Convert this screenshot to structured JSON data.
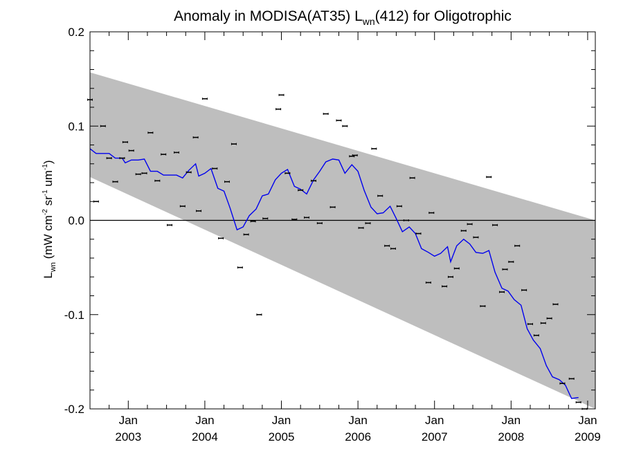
{
  "chart_data": {
    "type": "scatter",
    "title": {
      "prefix": "Anomaly in MODISA(AT35) L",
      "subscript": "wn",
      "suffix": "(412) for Oligotrophic"
    },
    "ylabel": {
      "l": "L",
      "wn": "wn",
      "units_open": " (mW cm",
      "exp1": "-2",
      "sr": " sr",
      "exp2": "-1",
      "um": " um",
      "exp3": "-1",
      "close": ")"
    },
    "xlabel": "",
    "x_range": [
      2002.5,
      2009.1
    ],
    "ylim": [
      -0.2,
      0.2
    ],
    "y_ticks": [
      {
        "value": 0.2,
        "label": "0.2"
      },
      {
        "value": 0.1,
        "label": "0.1"
      },
      {
        "value": 0.0,
        "label": "0.0"
      },
      {
        "value": -0.1,
        "label": "-0.1"
      },
      {
        "value": -0.2,
        "label": "-0.2"
      }
    ],
    "x_ticks": [
      {
        "value": 2003,
        "month": "Jan",
        "year": "2003"
      },
      {
        "value": 2004,
        "month": "Jan",
        "year": "2004"
      },
      {
        "value": 2005,
        "month": "Jan",
        "year": "2005"
      },
      {
        "value": 2006,
        "month": "Jan",
        "year": "2006"
      },
      {
        "value": 2007,
        "month": "Jan",
        "year": "2007"
      },
      {
        "value": 2008,
        "month": "Jan",
        "year": "2008"
      },
      {
        "value": 2009,
        "month": "Jan",
        "year": "2009"
      }
    ],
    "band": {
      "color": "#bebebe",
      "upper": [
        [
          2002.5,
          0.157
        ],
        [
          2009.1,
          0.0
        ]
      ],
      "lower": [
        [
          2002.5,
          0.046
        ],
        [
          2009.1,
          -0.2
        ]
      ]
    },
    "zero_line": 0.0,
    "series": [
      {
        "kind": "points",
        "color": "#000000",
        "points": [
          [
            2002.5,
            0.128
          ],
          [
            2002.58,
            0.02
          ],
          [
            2002.67,
            0.1
          ],
          [
            2002.75,
            0.066
          ],
          [
            2002.83,
            0.041
          ],
          [
            2002.92,
            0.066
          ],
          [
            2002.96,
            0.083
          ],
          [
            2003.04,
            0.074
          ],
          [
            2003.13,
            0.049
          ],
          [
            2003.21,
            0.05
          ],
          [
            2003.29,
            0.093
          ],
          [
            2003.38,
            0.042
          ],
          [
            2003.46,
            0.07
          ],
          [
            2003.54,
            -0.005
          ],
          [
            2003.63,
            0.072
          ],
          [
            2003.71,
            0.015
          ],
          [
            2003.79,
            0.051
          ],
          [
            2003.88,
            0.088
          ],
          [
            2003.92,
            0.01
          ],
          [
            2004.0,
            0.129
          ],
          [
            2004.13,
            0.055
          ],
          [
            2004.21,
            -0.019
          ],
          [
            2004.29,
            0.041
          ],
          [
            2004.38,
            0.081
          ],
          [
            2004.46,
            -0.05
          ],
          [
            2004.54,
            -0.015
          ],
          [
            2004.63,
            -0.001
          ],
          [
            2004.71,
            -0.1
          ],
          [
            2004.79,
            0.002
          ],
          [
            2004.96,
            0.118
          ],
          [
            2005.0,
            0.133
          ],
          [
            2005.08,
            0.05
          ],
          [
            2005.17,
            0.001
          ],
          [
            2005.25,
            0.032
          ],
          [
            2005.33,
            0.003
          ],
          [
            2005.42,
            0.042
          ],
          [
            2005.5,
            -0.003
          ],
          [
            2005.58,
            0.113
          ],
          [
            2005.67,
            0.014
          ],
          [
            2005.75,
            0.106
          ],
          [
            2005.83,
            0.1
          ],
          [
            2005.92,
            0.068
          ],
          [
            2005.96,
            0.069
          ],
          [
            2006.04,
            -0.008
          ],
          [
            2006.13,
            -0.003
          ],
          [
            2006.21,
            0.076
          ],
          [
            2006.29,
            0.026
          ],
          [
            2006.38,
            -0.027
          ],
          [
            2006.46,
            -0.03
          ],
          [
            2006.54,
            0.015
          ],
          [
            2006.63,
            0.0
          ],
          [
            2006.71,
            0.045
          ],
          [
            2006.79,
            -0.014
          ],
          [
            2006.92,
            -0.066
          ],
          [
            2006.96,
            0.008
          ],
          [
            2007.13,
            -0.07
          ],
          [
            2007.21,
            -0.06
          ],
          [
            2007.29,
            -0.051
          ],
          [
            2007.38,
            -0.011
          ],
          [
            2007.46,
            -0.004
          ],
          [
            2007.54,
            -0.018
          ],
          [
            2007.63,
            -0.091
          ],
          [
            2007.71,
            0.046
          ],
          [
            2007.79,
            -0.005
          ],
          [
            2007.88,
            -0.076
          ],
          [
            2007.92,
            -0.052
          ],
          [
            2008.0,
            -0.044
          ],
          [
            2008.08,
            -0.027
          ],
          [
            2008.17,
            -0.074
          ],
          [
            2008.25,
            -0.11
          ],
          [
            2008.33,
            -0.122
          ],
          [
            2008.42,
            -0.109
          ],
          [
            2008.5,
            -0.104
          ],
          [
            2008.58,
            -0.089
          ],
          [
            2008.67,
            -0.173
          ],
          [
            2008.79,
            -0.168
          ],
          [
            2008.88,
            -0.193
          ],
          [
            2008.96,
            -0.2
          ]
        ]
      },
      {
        "kind": "line",
        "color": "#0000ee",
        "points": [
          [
            2002.5,
            0.076
          ],
          [
            2002.58,
            0.071
          ],
          [
            2002.67,
            0.071
          ],
          [
            2002.75,
            0.071
          ],
          [
            2002.83,
            0.066
          ],
          [
            2002.92,
            0.066
          ],
          [
            2002.96,
            0.061
          ],
          [
            2003.04,
            0.064
          ],
          [
            2003.13,
            0.064
          ],
          [
            2003.21,
            0.065
          ],
          [
            2003.29,
            0.052
          ],
          [
            2003.38,
            0.052
          ],
          [
            2003.46,
            0.048
          ],
          [
            2003.54,
            0.048
          ],
          [
            2003.63,
            0.048
          ],
          [
            2003.71,
            0.045
          ],
          [
            2003.79,
            0.053
          ],
          [
            2003.88,
            0.06
          ],
          [
            2003.92,
            0.047
          ],
          [
            2004.0,
            0.05
          ],
          [
            2004.08,
            0.055
          ],
          [
            2004.17,
            0.034
          ],
          [
            2004.25,
            0.031
          ],
          [
            2004.33,
            0.013
          ],
          [
            2004.42,
            -0.01
          ],
          [
            2004.5,
            -0.007
          ],
          [
            2004.58,
            0.005
          ],
          [
            2004.67,
            0.012
          ],
          [
            2004.75,
            0.026
          ],
          [
            2004.83,
            0.028
          ],
          [
            2004.92,
            0.043
          ],
          [
            2005.0,
            0.05
          ],
          [
            2005.08,
            0.054
          ],
          [
            2005.17,
            0.036
          ],
          [
            2005.25,
            0.033
          ],
          [
            2005.33,
            0.028
          ],
          [
            2005.42,
            0.043
          ],
          [
            2005.5,
            0.052
          ],
          [
            2005.58,
            0.062
          ],
          [
            2005.67,
            0.065
          ],
          [
            2005.75,
            0.064
          ],
          [
            2005.83,
            0.05
          ],
          [
            2005.92,
            0.059
          ],
          [
            2006.0,
            0.052
          ],
          [
            2006.08,
            0.032
          ],
          [
            2006.17,
            0.014
          ],
          [
            2006.25,
            0.007
          ],
          [
            2006.33,
            0.008
          ],
          [
            2006.42,
            0.015
          ],
          [
            2006.5,
            0.002
          ],
          [
            2006.58,
            -0.012
          ],
          [
            2006.67,
            -0.007
          ],
          [
            2006.75,
            -0.014
          ],
          [
            2006.83,
            -0.03
          ],
          [
            2006.92,
            -0.034
          ],
          [
            2007.0,
            -0.038
          ],
          [
            2007.08,
            -0.035
          ],
          [
            2007.17,
            -0.028
          ],
          [
            2007.21,
            -0.044
          ],
          [
            2007.29,
            -0.027
          ],
          [
            2007.38,
            -0.02
          ],
          [
            2007.46,
            -0.025
          ],
          [
            2007.54,
            -0.034
          ],
          [
            2007.63,
            -0.035
          ],
          [
            2007.71,
            -0.032
          ],
          [
            2007.79,
            -0.055
          ],
          [
            2007.88,
            -0.072
          ],
          [
            2007.96,
            -0.075
          ],
          [
            2008.04,
            -0.084
          ],
          [
            2008.13,
            -0.09
          ],
          [
            2008.21,
            -0.115
          ],
          [
            2008.29,
            -0.127
          ],
          [
            2008.38,
            -0.136
          ],
          [
            2008.46,
            -0.154
          ],
          [
            2008.54,
            -0.166
          ],
          [
            2008.63,
            -0.169
          ],
          [
            2008.71,
            -0.175
          ],
          [
            2008.79,
            -0.189
          ],
          [
            2008.88,
            -0.188
          ]
        ]
      }
    ]
  }
}
